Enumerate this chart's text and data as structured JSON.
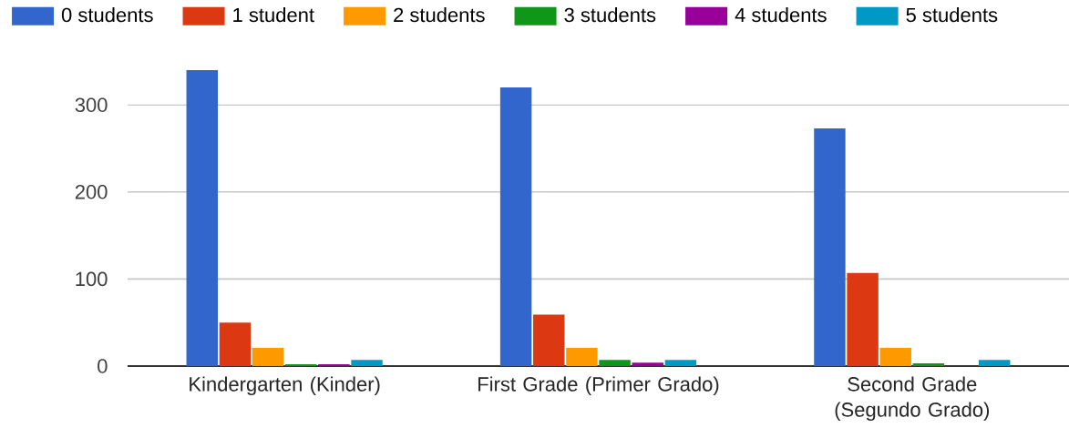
{
  "chart_data": {
    "type": "bar",
    "categories": [
      "Kindergarten (Kinder)",
      "First Grade (Primer Grado)",
      "Second Grade (Segundo Grado)"
    ],
    "series": [
      {
        "name": "0 students",
        "color": "#3366cc",
        "values": [
          340,
          320,
          273
        ]
      },
      {
        "name": "1 student",
        "color": "#dc3912",
        "values": [
          50,
          59,
          107
        ]
      },
      {
        "name": "2 students",
        "color": "#ff9900",
        "values": [
          21,
          21,
          21
        ]
      },
      {
        "name": "3 students",
        "color": "#109618",
        "values": [
          2,
          7,
          3
        ]
      },
      {
        "name": "4 students",
        "color": "#990099",
        "values": [
          2,
          4,
          0
        ]
      },
      {
        "name": "5 students",
        "color": "#0099c6",
        "values": [
          7,
          7,
          7
        ]
      }
    ],
    "ylim": [
      0,
      340
    ],
    "yticks": [
      0,
      100,
      200,
      300
    ],
    "grid": "y",
    "legend": "top"
  }
}
